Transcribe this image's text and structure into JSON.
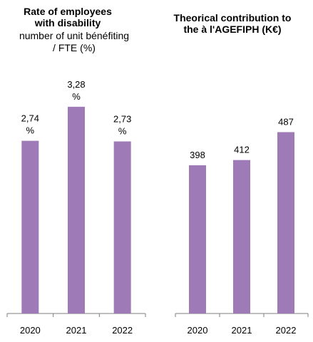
{
  "colors": {
    "bar": "#9e7ab6",
    "axis": "#7f7f7f"
  },
  "chart_data": [
    {
      "type": "bar",
      "title": "Rate of employees with disability",
      "subtitle": "number of unit bénéfiting / FTE (%)",
      "categories": [
        "2020",
        "2021",
        "2022"
      ],
      "values": [
        2.74,
        3.28,
        2.73
      ],
      "labels": [
        "2,74 %",
        "3,28 %",
        "2,73 %"
      ],
      "ylim": [
        0,
        3.9
      ]
    },
    {
      "type": "bar",
      "title": "Theorical contribution to the à l'AGEFIPH (K€)",
      "categories": [
        "2020",
        "2021",
        "2022"
      ],
      "values": [
        398,
        412,
        487
      ],
      "labels": [
        "398",
        "412",
        "487"
      ],
      "ylim": [
        0,
        660
      ]
    }
  ]
}
